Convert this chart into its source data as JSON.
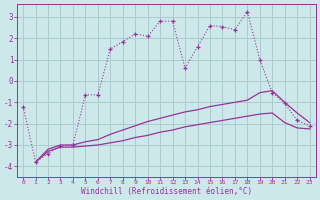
{
  "background_color": "#cce8ea",
  "grid_color": "#aacccc",
  "line_color": "#993399",
  "xlabel": "Windchill (Refroidissement éolien,°C)",
  "xlim": [
    -0.5,
    23.5
  ],
  "ylim": [
    -4.5,
    3.6
  ],
  "yticks": [
    -4,
    -3,
    -2,
    -1,
    0,
    1,
    2,
    3
  ],
  "xticks": [
    0,
    1,
    2,
    3,
    4,
    5,
    6,
    7,
    8,
    9,
    10,
    11,
    12,
    13,
    14,
    15,
    16,
    17,
    18,
    19,
    20,
    21,
    22,
    23
  ],
  "main_series": [
    [
      0,
      -1.2
    ],
    [
      1,
      -3.8
    ],
    [
      2,
      -3.4
    ],
    [
      3,
      -3.05
    ],
    [
      4,
      -3.0
    ],
    [
      5,
      -0.65
    ],
    [
      6,
      -0.65
    ],
    [
      7,
      1.5
    ],
    [
      8,
      1.85
    ],
    [
      9,
      2.2
    ],
    [
      10,
      2.1
    ],
    [
      11,
      2.8
    ],
    [
      12,
      2.8
    ],
    [
      13,
      0.6
    ],
    [
      14,
      1.6
    ],
    [
      15,
      2.6
    ],
    [
      16,
      2.55
    ],
    [
      17,
      2.4
    ],
    [
      18,
      3.25
    ],
    [
      19,
      1.0
    ],
    [
      20,
      -0.55
    ],
    [
      21,
      -1.05
    ],
    [
      22,
      -1.85
    ],
    [
      23,
      -2.1
    ]
  ],
  "line2": [
    [
      1,
      -3.8
    ],
    [
      2,
      -3.2
    ],
    [
      3,
      -3.0
    ],
    [
      4,
      -3.0
    ],
    [
      5,
      -2.85
    ],
    [
      6,
      -2.75
    ],
    [
      7,
      -2.5
    ],
    [
      8,
      -2.3
    ],
    [
      9,
      -2.1
    ],
    [
      10,
      -1.9
    ],
    [
      11,
      -1.75
    ],
    [
      12,
      -1.6
    ],
    [
      13,
      -1.45
    ],
    [
      14,
      -1.35
    ],
    [
      15,
      -1.2
    ],
    [
      16,
      -1.1
    ],
    [
      17,
      -1.0
    ],
    [
      18,
      -0.9
    ],
    [
      19,
      -0.55
    ],
    [
      20,
      -0.45
    ],
    [
      21,
      -1.0
    ],
    [
      22,
      -1.5
    ],
    [
      23,
      -1.95
    ]
  ],
  "line3": [
    [
      1,
      -3.8
    ],
    [
      2,
      -3.3
    ],
    [
      3,
      -3.1
    ],
    [
      4,
      -3.1
    ],
    [
      5,
      -3.05
    ],
    [
      6,
      -3.0
    ],
    [
      7,
      -2.9
    ],
    [
      8,
      -2.8
    ],
    [
      9,
      -2.65
    ],
    [
      10,
      -2.55
    ],
    [
      11,
      -2.4
    ],
    [
      12,
      -2.3
    ],
    [
      13,
      -2.15
    ],
    [
      14,
      -2.05
    ],
    [
      15,
      -1.95
    ],
    [
      16,
      -1.85
    ],
    [
      17,
      -1.75
    ],
    [
      18,
      -1.65
    ],
    [
      19,
      -1.55
    ],
    [
      20,
      -1.5
    ],
    [
      21,
      -1.95
    ],
    [
      22,
      -2.2
    ],
    [
      23,
      -2.25
    ]
  ]
}
